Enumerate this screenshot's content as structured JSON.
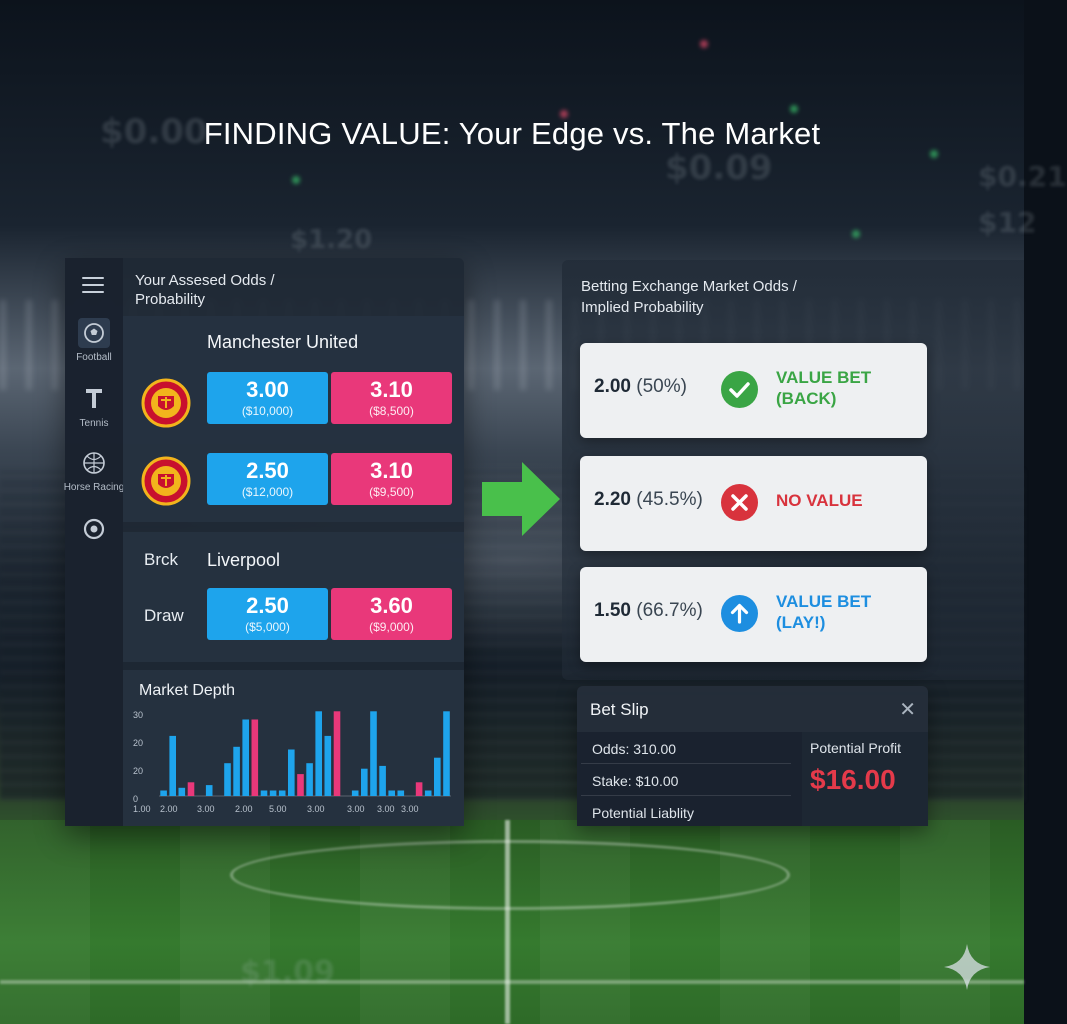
{
  "title": "FINDING VALUE: Your Edge vs. The Market",
  "left_panel": {
    "heading_line1": "Your Assesed Odds /",
    "heading_line2": "Probability",
    "sidebar": [
      {
        "icon": "football-icon",
        "label": "Football"
      },
      {
        "icon": "tennis-icon",
        "label": "Tennis"
      },
      {
        "icon": "horse-racing-icon",
        "label": "Horse Racing"
      },
      {
        "icon": "settings-icon",
        "label": ""
      }
    ],
    "match1": {
      "team": "Manchester United",
      "rows": [
        {
          "back_price": "3.00",
          "back_vol": "($10,000)",
          "lay_price": "3.10",
          "lay_vol": "($8,500)"
        },
        {
          "back_price": "2.50",
          "back_vol": "($12,000)",
          "lay_price": "3.10",
          "lay_vol": "($9,500)"
        }
      ]
    },
    "match2": {
      "label_left": "Brck",
      "team": "Liverpool",
      "row_label": "Draw",
      "back_price": "2.50",
      "back_vol": "($5,000)",
      "lay_price": "3.60",
      "lay_vol": "($9,000)"
    },
    "market_depth": {
      "title": "Market Depth"
    }
  },
  "chart_data": {
    "type": "bar",
    "title": "Market Depth",
    "ylim": [
      0,
      30
    ],
    "y_ticks": [
      "30",
      "20",
      "20",
      "0"
    ],
    "x_ticks": [
      "1.00",
      "2.00",
      "3.00",
      "2.00",
      "5.00",
      "3.00",
      "3.00",
      "3.00",
      "3.00"
    ],
    "bars": [
      {
        "v": 2,
        "side": "back"
      },
      {
        "v": 22,
        "side": "back"
      },
      {
        "v": 3,
        "side": "back"
      },
      {
        "v": 5,
        "side": "lay"
      },
      {
        "v": 0,
        "side": "back"
      },
      {
        "v": 4,
        "side": "back"
      },
      {
        "v": 0,
        "side": "back"
      },
      {
        "v": 12,
        "side": "back"
      },
      {
        "v": 18,
        "side": "back"
      },
      {
        "v": 28,
        "side": "back"
      },
      {
        "v": 28,
        "side": "lay"
      },
      {
        "v": 2,
        "side": "back"
      },
      {
        "v": 2,
        "side": "back"
      },
      {
        "v": 2,
        "side": "back"
      },
      {
        "v": 17,
        "side": "back"
      },
      {
        "v": 8,
        "side": "lay"
      },
      {
        "v": 12,
        "side": "back"
      },
      {
        "v": 31,
        "side": "back"
      },
      {
        "v": 22,
        "side": "back"
      },
      {
        "v": 31,
        "side": "lay"
      },
      {
        "v": 0,
        "side": "back"
      },
      {
        "v": 2,
        "side": "back"
      },
      {
        "v": 10,
        "side": "back"
      },
      {
        "v": 31,
        "side": "back"
      },
      {
        "v": 11,
        "side": "back"
      },
      {
        "v": 2,
        "side": "back"
      },
      {
        "v": 2,
        "side": "back"
      },
      {
        "v": 0,
        "side": "back"
      },
      {
        "v": 5,
        "side": "lay"
      },
      {
        "v": 2,
        "side": "back"
      },
      {
        "v": 14,
        "side": "back"
      },
      {
        "v": 31,
        "side": "back"
      }
    ],
    "colors": {
      "back": "#1ea4ec",
      "lay": "#e9387a"
    }
  },
  "right_panel": {
    "heading_line1": "Betting Exchange Market Odds /",
    "heading_line2": "Implied Probability",
    "cards": [
      {
        "odds": "2.00",
        "prob": "(50%)",
        "status_line1": "VALUE BET",
        "status_line2": "(BACK)",
        "icon": "check-icon",
        "color": "#3aa545"
      },
      {
        "odds": "2.20",
        "prob": "(45.5%)",
        "status_line1": "NO VALUE",
        "status_line2": "",
        "icon": "x-icon",
        "color": "#d8333d"
      },
      {
        "odds": "1.50",
        "prob": "(66.7%)",
        "status_line1": "VALUE BET",
        "status_line2": "(LAY!)",
        "icon": "arrow-up-icon",
        "color": "#1d8ee0"
      }
    ]
  },
  "bet_slip": {
    "title": "Bet Slip",
    "odds": "Odds: 310.00",
    "stake": "Stake: $10.00",
    "liability": "Potential Liablity",
    "profit_label": "Potential Profit",
    "profit_value": "$16.00"
  },
  "background_ghosts": [
    "$0.00",
    "$0.09",
    "$1.20",
    "$0.21",
    "$1.09",
    "$12"
  ]
}
